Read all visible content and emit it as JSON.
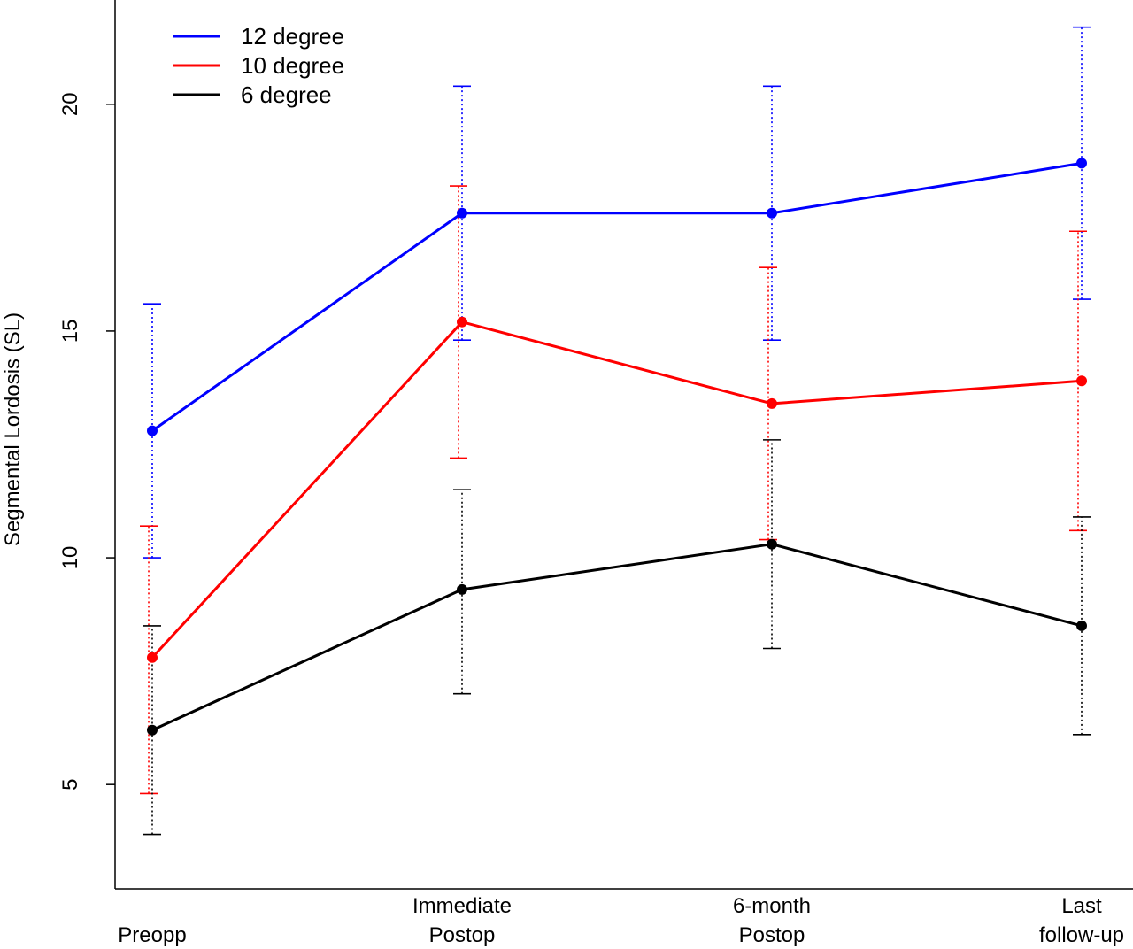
{
  "chart_data": {
    "type": "line",
    "title": "",
    "xlabel": "",
    "ylabel": "Segmental Lordosis (SL)",
    "categories": [
      [
        "",
        "Preopp"
      ],
      [
        "Immediate",
        "Postop"
      ],
      [
        "6-month",
        "Postop"
      ],
      [
        "Last",
        "follow-up"
      ]
    ],
    "ylim": [
      2.7,
      22.3
    ],
    "yticks": [
      5,
      10,
      15,
      20
    ],
    "grid": false,
    "legend": "top-left",
    "series": [
      {
        "name": "12 degree",
        "color": "#0000ff",
        "values": [
          12.8,
          17.6,
          17.6,
          18.7
        ],
        "lower": [
          10.0,
          14.8,
          14.8,
          15.7
        ],
        "upper": [
          15.6,
          20.4,
          20.4,
          21.7
        ]
      },
      {
        "name": "10 degree",
        "color": "#ff0000",
        "values": [
          7.8,
          15.2,
          13.4,
          13.9
        ],
        "lower": [
          4.8,
          12.2,
          10.4,
          10.6
        ],
        "upper": [
          10.7,
          18.2,
          16.4,
          17.2
        ]
      },
      {
        "name": " 6 degree",
        "color": "#000000",
        "values": [
          6.2,
          9.3,
          10.3,
          8.5
        ],
        "lower": [
          3.9,
          7.0,
          8.0,
          6.1
        ],
        "upper": [
          8.5,
          11.5,
          12.6,
          10.9
        ]
      }
    ]
  }
}
